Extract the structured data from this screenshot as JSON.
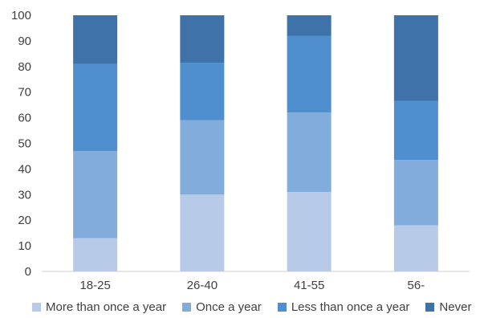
{
  "chart_data": {
    "type": "bar",
    "stacked": true,
    "categories": [
      "18-25",
      "26-40",
      "41-55",
      "56-"
    ],
    "series": [
      {
        "name": "More than once a year",
        "values": [
          13,
          30,
          31,
          18
        ],
        "color": "#b7cbe8"
      },
      {
        "name": "Once a year",
        "values": [
          34,
          29,
          31,
          25.5
        ],
        "color": "#82acdc"
      },
      {
        "name": "Less than once a year",
        "values": [
          34,
          22.5,
          30,
          23
        ],
        "color": "#4f8fcd"
      },
      {
        "name": "Never",
        "values": [
          19,
          18.5,
          8,
          33.5
        ],
        "color": "#3e72a9"
      }
    ],
    "ylim": [
      0,
      100
    ],
    "yticks": [
      "0",
      "10",
      "20",
      "30",
      "40",
      "50",
      "60",
      "70",
      "80",
      "90",
      "100"
    ],
    "grid": false,
    "legend_position": "bottom",
    "title": "",
    "xlabel": "",
    "ylabel": ""
  }
}
